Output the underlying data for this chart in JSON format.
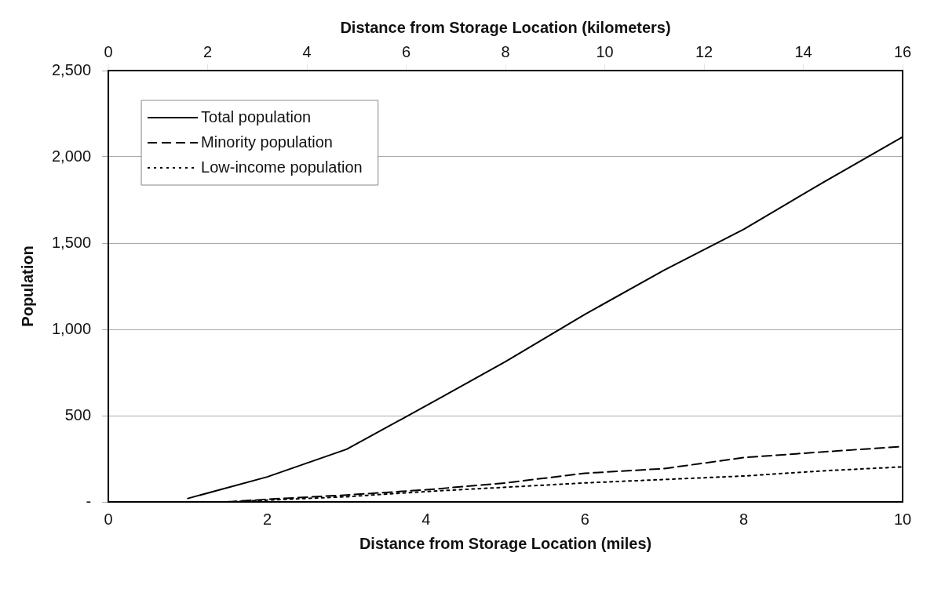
{
  "chart_data": {
    "type": "line",
    "xlabel": "Distance from Storage Location (miles)",
    "x2label": "Distance from Storage Location (kilometers)",
    "ylabel": "Population",
    "xlim": [
      0,
      10
    ],
    "xticks": [
      0,
      2,
      4,
      6,
      8,
      10
    ],
    "x2lim": [
      0,
      16
    ],
    "x2ticks": [
      0,
      2,
      4,
      6,
      8,
      10,
      12,
      14,
      16
    ],
    "ylim": [
      0,
      2500
    ],
    "yticks": [
      {
        "value": 0,
        "label": "-"
      },
      500,
      {
        "value": 1000,
        "label": "1,000"
      },
      {
        "value": 1500,
        "label": "1,500"
      },
      {
        "value": 2000,
        "label": "2,000"
      },
      {
        "value": 2500,
        "label": "2,500"
      }
    ],
    "grid": "y",
    "legend": "top left",
    "marker": "none",
    "series": [
      {
        "name": "Total population",
        "color": "#000000",
        "line_style": "solid",
        "x": [
          1,
          2,
          3,
          4,
          5,
          6,
          7,
          8,
          9,
          10
        ],
        "values": [
          20,
          145,
          305,
          557,
          813,
          1087,
          1344,
          1580,
          1852,
          2115
        ]
      },
      {
        "name": "Minority population",
        "color": "#000000",
        "line_style": "dashed",
        "x": [
          1.5,
          2,
          3,
          4,
          5,
          6,
          7,
          8,
          9,
          10
        ],
        "values": [
          0,
          15,
          40,
          70,
          110,
          166,
          193,
          257,
          290,
          321
        ]
      },
      {
        "name": "Low-income population",
        "color": "#000000",
        "line_style": "dotted",
        "x": [
          1.5,
          2,
          3,
          4,
          5,
          6,
          7,
          8,
          9,
          10
        ],
        "values": [
          0,
          10,
          30,
          60,
          85,
          110,
          130,
          150,
          180,
          203
        ]
      }
    ]
  }
}
